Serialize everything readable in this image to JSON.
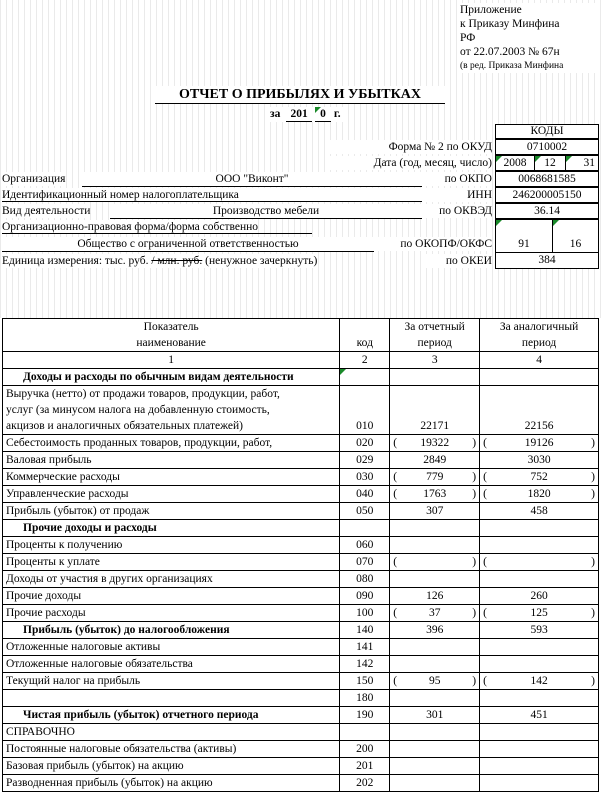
{
  "appendix": {
    "line1": "Приложение",
    "line2": "к Приказу Минфина",
    "line3": "РФ",
    "line4": "от 22.07.2003 № 67н",
    "line5": "(в ред. Приказа Минфина"
  },
  "title": "ОТЧЕТ О ПРИБЫЛЯХ И УБЫТКАХ",
  "period": {
    "prefix": "за",
    "year": "201",
    "digit": "0",
    "suffix": "г."
  },
  "codes_header": "КОДЫ",
  "form": {
    "label": "Форма № 2 по ОКУД",
    "code": "0710002"
  },
  "date": {
    "label": "Дата (год, месяц, число)",
    "year": "2008",
    "month": "12",
    "day": "31"
  },
  "org": {
    "label": "Организация",
    "value": "ООО \"Виконт\"",
    "code_label": "по ОКПО",
    "code": "0068681585"
  },
  "inn": {
    "label": "Идентификационный номер налогоплательщика",
    "code_label": "ИНН",
    "code": "246200005150"
  },
  "activity": {
    "label": "Вид деятельности",
    "value": "Производство мебели",
    "code_label": "по ОКВЭД",
    "code": "36.14"
  },
  "legal_form": {
    "label": "Организационно-правовая форма/форма собственно",
    "value": "Общество с ограниченной ответственностью",
    "code_label": "по ОКОПФ/ОКФС",
    "code1": "91",
    "code2": "16"
  },
  "unit": {
    "label_a": "Единица измерения: тыс. руб.",
    "label_strike": "/ млн. руб.",
    "label_b": " (ненужное зачеркнуть)",
    "code_label": "по ОКЕИ",
    "code": "384"
  },
  "table": {
    "head": {
      "indicator": "Показатель",
      "name": "наименование",
      "code": "код",
      "current_a": "За отчетный",
      "current_b": "период",
      "prev_a": "За аналогичный",
      "prev_b": "период",
      "n1": "1",
      "n2": "2",
      "n3": "3",
      "n4": "4"
    },
    "rows": [
      {
        "name": "Доходы и расходы по обычным видам деятельности",
        "code": "",
        "cur": "",
        "prev": "",
        "bold": true,
        "paren": false
      },
      {
        "name": "Выручка (нетто) от продажи товаров, продукции, работ,",
        "code": "",
        "cur": "",
        "prev": "",
        "bold": false,
        "paren": false,
        "noBottom": true
      },
      {
        "name": "услуг (за минусом налога на добавленную стоимость,",
        "code": "",
        "cur": "",
        "prev": "",
        "bold": false,
        "paren": false,
        "noBottom": true
      },
      {
        "name": "акцизов и аналогичных обязательных платежей)",
        "code": "010",
        "cur": "22171",
        "prev": "22156",
        "bold": false,
        "paren": false
      },
      {
        "name": "Себестоимость проданных товаров, продукции, работ,",
        "code": "020",
        "cur": "19322",
        "prev": "19126",
        "bold": false,
        "paren": true
      },
      {
        "name": "Валовая прибыль",
        "code": "029",
        "cur": "2849",
        "prev": "3030",
        "bold": false,
        "paren": false
      },
      {
        "name": "Коммерческие расходы",
        "code": "030",
        "cur": "779",
        "prev": "752",
        "bold": false,
        "paren": true
      },
      {
        "name": "Управленческие расходы",
        "code": "040",
        "cur": "1763",
        "prev": "1820",
        "bold": false,
        "paren": true
      },
      {
        "name": "Прибыль (убыток) от продаж",
        "code": "050",
        "cur": "307",
        "prev": "458",
        "bold": false,
        "paren": false
      },
      {
        "name": "Прочие доходы и расходы",
        "code": "",
        "cur": "",
        "prev": "",
        "bold": true,
        "paren": false
      },
      {
        "name": "Проценты к получению",
        "code": "060",
        "cur": "",
        "prev": "",
        "bold": false,
        "paren": false
      },
      {
        "name": "Проценты к уплате",
        "code": "070",
        "cur": "",
        "prev": "",
        "bold": false,
        "paren": true
      },
      {
        "name": "Доходы от участия в других организациях",
        "code": "080",
        "cur": "",
        "prev": "",
        "bold": false,
        "paren": false
      },
      {
        "name": "Прочие доходы",
        "code": "090",
        "cur": "126",
        "prev": "260",
        "bold": false,
        "paren": false
      },
      {
        "name": "Прочие расходы",
        "code": "100",
        "cur": "37",
        "prev": "125",
        "bold": false,
        "paren": true
      },
      {
        "name": "Прибыль (убыток) до налогообложения",
        "code": "140",
        "cur": "396",
        "prev": "593",
        "bold": true,
        "paren": false
      },
      {
        "name": "Отложенные налоговые активы",
        "code": "141",
        "cur": "",
        "prev": "",
        "bold": false,
        "paren": false
      },
      {
        "name": "Отложенные налоговые обязательства",
        "code": "142",
        "cur": "",
        "prev": "",
        "bold": false,
        "paren": false
      },
      {
        "name": "Текущий налог на прибыль",
        "code": "150",
        "cur": "95",
        "prev": "142",
        "bold": false,
        "paren": true
      },
      {
        "name": "",
        "code": "180",
        "cur": "",
        "prev": "",
        "bold": false,
        "paren": false
      },
      {
        "name": "Чистая прибыль (убыток) отчетного периода",
        "code": "190",
        "cur": "301",
        "prev": "451",
        "bold": true,
        "paren": false
      },
      {
        "name": "СПРАВОЧНО",
        "code": "",
        "cur": "",
        "prev": "",
        "bold": false,
        "paren": false
      },
      {
        "name": "Постоянные налоговые обязательства (активы)",
        "code": "200",
        "cur": "",
        "prev": "",
        "bold": false,
        "paren": false
      },
      {
        "name": "Базовая прибыль (убыток) на акцию",
        "code": "201",
        "cur": "",
        "prev": "",
        "bold": false,
        "paren": false
      },
      {
        "name": "Разводненная прибыль (убыток) на акцию",
        "code": "202",
        "cur": "",
        "prev": "",
        "bold": false,
        "paren": false
      }
    ]
  }
}
